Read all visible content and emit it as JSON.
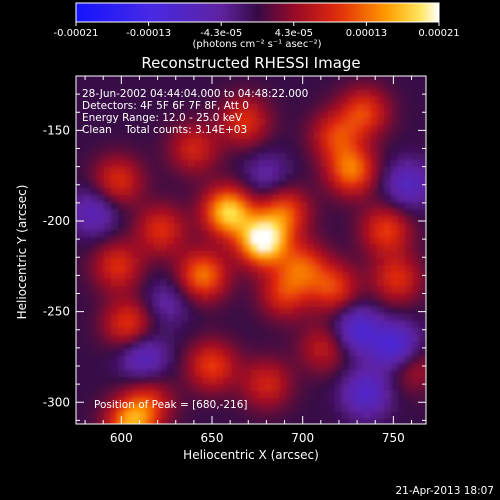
{
  "chart_data": {
    "type": "heatmap",
    "title": "Reconstructed RHESSI Image",
    "xlabel": "Heliocentric X (arcsec)",
    "ylabel": "Heliocentric Y (arcsec)",
    "x_range": [
      575,
      768
    ],
    "y_range": [
      -312,
      -120
    ],
    "x_ticks": [
      600,
      650,
      700,
      750
    ],
    "y_ticks": [
      -150,
      -200,
      -250,
      -300
    ],
    "x_tick_labels": [
      "600",
      "650",
      "700",
      "750"
    ],
    "y_tick_labels": [
      "-150",
      "-200",
      "-250",
      "-300"
    ],
    "colorbar": {
      "min": -0.00021,
      "max": 0.00021,
      "tick_labels": [
        "-0.00021",
        "-0.00013",
        "-4.3e-05",
        "4.3e-05",
        "0.00013",
        "0.00021"
      ],
      "units_label": "(photons cm⁻² s⁻¹ asec⁻²)"
    },
    "annotations": [
      "28-Jun-2002 04:44:04.000 to 04:48:22.000",
      "Detectors: 4F 5F 6F 7F 8F, Att 0",
      "Energy Range: 12.0 - 25.0 keV",
      "Clean    Total counts: 3.14E+03"
    ],
    "peak_label": "Position of Peak = [680,-216]",
    "peak_position": [
      680,
      -216
    ],
    "sources": [
      {
        "x": 678,
        "y": -211,
        "value": 0.00021
      },
      {
        "x": 659,
        "y": -195,
        "value": 0.00018
      },
      {
        "x": 645,
        "y": -230,
        "value": 0.00013
      },
      {
        "x": 690,
        "y": -195,
        "value": 0.00011
      },
      {
        "x": 700,
        "y": -225,
        "value": 0.0001
      },
      {
        "x": 690,
        "y": -240,
        "value": 9e-05
      },
      {
        "x": 717,
        "y": -237,
        "value": 0.0001
      },
      {
        "x": 746,
        "y": -205,
        "value": 0.0001
      },
      {
        "x": 752,
        "y": -232,
        "value": 9e-05
      },
      {
        "x": 727,
        "y": -172,
        "value": 0.00013
      },
      {
        "x": 718,
        "y": -153,
        "value": 9e-05
      },
      {
        "x": 734,
        "y": -140,
        "value": 0.0001
      },
      {
        "x": 640,
        "y": -160,
        "value": 8e-05
      },
      {
        "x": 668,
        "y": -145,
        "value": 9e-05
      },
      {
        "x": 598,
        "y": -178,
        "value": 9e-05
      },
      {
        "x": 622,
        "y": -205,
        "value": 9e-05
      },
      {
        "x": 598,
        "y": -225,
        "value": 9e-05
      },
      {
        "x": 604,
        "y": -257,
        "value": 0.0001
      },
      {
        "x": 650,
        "y": -280,
        "value": 0.0001
      },
      {
        "x": 680,
        "y": -290,
        "value": 8e-05
      },
      {
        "x": 615,
        "y": -300,
        "value": 8e-05
      },
      {
        "x": 605,
        "y": -312,
        "value": 0.00014
      },
      {
        "x": 712,
        "y": -270,
        "value": 7e-05
      },
      {
        "x": 760,
        "y": -280,
        "value": 7e-05
      },
      {
        "x": 758,
        "y": -180,
        "value": -8e-05
      },
      {
        "x": 730,
        "y": -260,
        "value": -0.0001
      },
      {
        "x": 752,
        "y": -270,
        "value": -0.00012
      },
      {
        "x": 735,
        "y": -295,
        "value": -9e-05
      },
      {
        "x": 612,
        "y": -275,
        "value": -8e-05
      },
      {
        "x": 585,
        "y": -195,
        "value": -7e-05
      },
      {
        "x": 680,
        "y": -175,
        "value": -5e-05
      },
      {
        "x": 625,
        "y": -245,
        "value": -5e-05
      }
    ]
  },
  "footer": {
    "timestamp": "21-Apr-2013 18:07"
  }
}
